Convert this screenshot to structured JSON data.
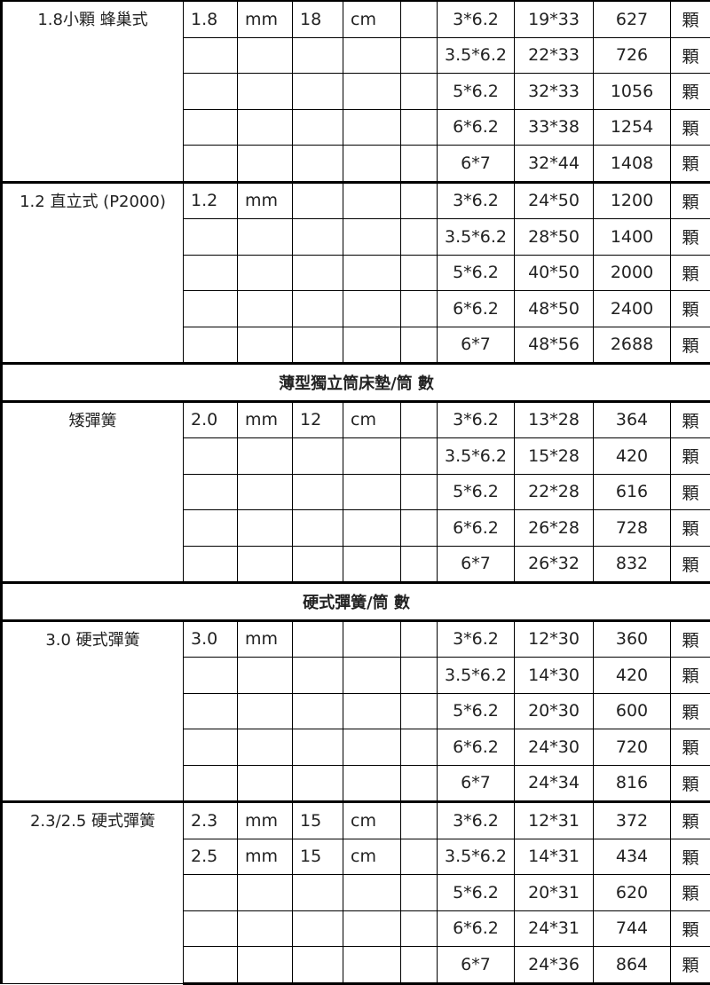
{
  "blocks": [
    {
      "type": "group",
      "name": "1.8小顆 蜂巢式",
      "rows": [
        [
          "1.8",
          "mm",
          "18",
          "cm",
          "",
          "3*6.2",
          "19*33",
          "627",
          "顆"
        ],
        [
          "",
          "",
          "",
          "",
          "",
          "3.5*6.2",
          "22*33",
          "726",
          "顆"
        ],
        [
          "",
          "",
          "",
          "",
          "",
          "5*6.2",
          "32*33",
          "1056",
          "顆"
        ],
        [
          "",
          "",
          "",
          "",
          "",
          "6*6.2",
          "33*38",
          "1254",
          "顆"
        ],
        [
          "",
          "",
          "",
          "",
          "",
          "6*7",
          "32*44",
          "1408",
          "顆"
        ]
      ]
    },
    {
      "type": "group",
      "name": "1.2 直立式 (P2000)",
      "rows": [
        [
          "1.2",
          "mm",
          "",
          "",
          "",
          "3*6.2",
          "24*50",
          "1200",
          "顆"
        ],
        [
          "",
          "",
          "",
          "",
          "",
          "3.5*6.2",
          "28*50",
          "1400",
          "顆"
        ],
        [
          "",
          "",
          "",
          "",
          "",
          "5*6.2",
          "40*50",
          "2000",
          "顆"
        ],
        [
          "",
          "",
          "",
          "",
          "",
          "6*6.2",
          "48*50",
          "2400",
          "顆"
        ],
        [
          "",
          "",
          "",
          "",
          "",
          "6*7",
          "48*56",
          "2688",
          "顆"
        ]
      ]
    },
    {
      "type": "section",
      "title": "薄型獨立筒床墊/筒 數"
    },
    {
      "type": "group",
      "name": "矮彈簧",
      "rows": [
        [
          "2.0",
          "mm",
          "12",
          "cm",
          "",
          "3*6.2",
          "13*28",
          "364",
          "顆"
        ],
        [
          "",
          "",
          "",
          "",
          "",
          "3.5*6.2",
          "15*28",
          "420",
          "顆"
        ],
        [
          "",
          "",
          "",
          "",
          "",
          "5*6.2",
          "22*28",
          "616",
          "顆"
        ],
        [
          "",
          "",
          "",
          "",
          "",
          "6*6.2",
          "26*28",
          "728",
          "顆"
        ],
        [
          "",
          "",
          "",
          "",
          "",
          "6*7",
          "26*32",
          "832",
          "顆"
        ]
      ]
    },
    {
      "type": "section",
      "title": "硬式彈簧/筒 數"
    },
    {
      "type": "group",
      "name": "3.0 硬式彈簧",
      "rows": [
        [
          "3.0",
          "mm",
          "",
          "",
          "",
          "3*6.2",
          "12*30",
          "360",
          "顆"
        ],
        [
          "",
          "",
          "",
          "",
          "",
          "3.5*6.2",
          "14*30",
          "420",
          "顆"
        ],
        [
          "",
          "",
          "",
          "",
          "",
          "5*6.2",
          "20*30",
          "600",
          "顆"
        ],
        [
          "",
          "",
          "",
          "",
          "",
          "6*6.2",
          "24*30",
          "720",
          "顆"
        ],
        [
          "",
          "",
          "",
          "",
          "",
          "6*7",
          "24*34",
          "816",
          "顆"
        ]
      ]
    },
    {
      "type": "group",
      "name": "2.3/2.5 硬式彈簧",
      "rows": [
        [
          "2.3",
          "mm",
          "15",
          "cm",
          "",
          "3*6.2",
          "12*31",
          "372",
          "顆"
        ],
        [
          "2.5",
          "mm",
          "15",
          "cm",
          "",
          "3.5*6.2",
          "14*31",
          "434",
          "顆"
        ],
        [
          "",
          "",
          "",
          "",
          "",
          "5*6.2",
          "20*31",
          "620",
          "顆"
        ],
        [
          "",
          "",
          "",
          "",
          "",
          "6*6.2",
          "24*31",
          "744",
          "顆"
        ],
        [
          "",
          "",
          "",
          "",
          "",
          "6*7",
          "24*36",
          "864",
          "顆"
        ]
      ]
    }
  ]
}
